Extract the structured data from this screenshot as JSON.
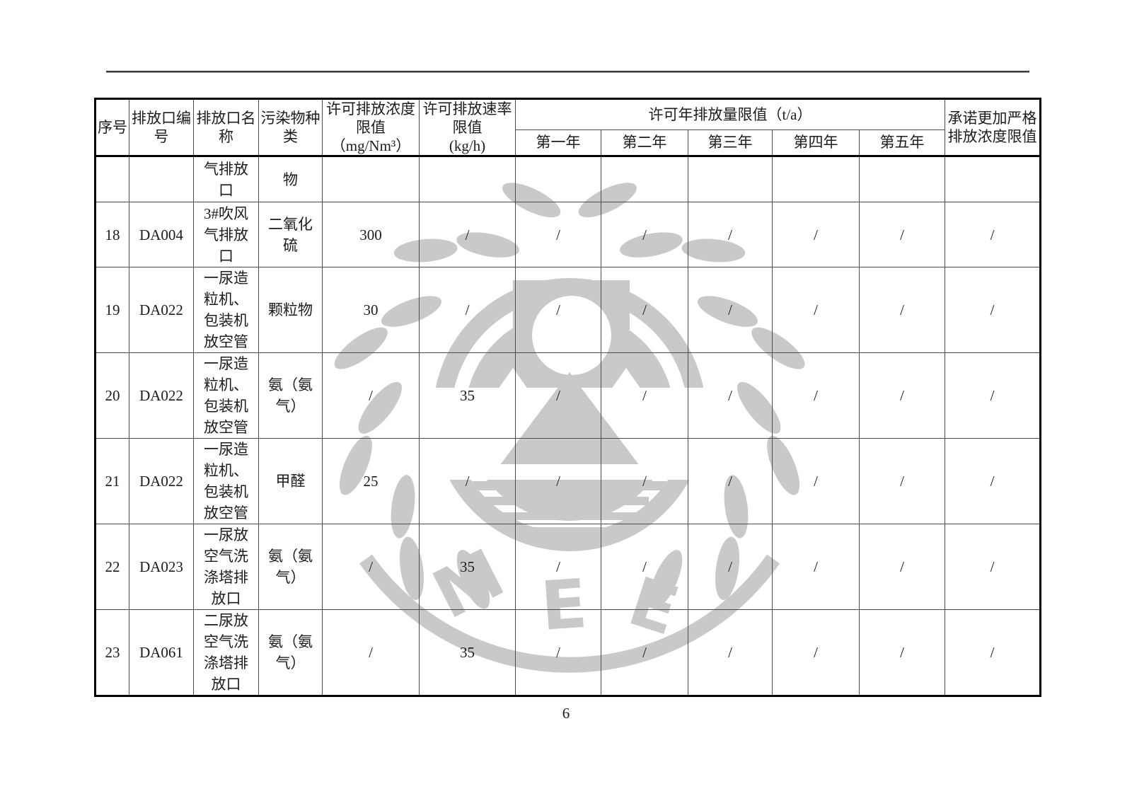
{
  "page": {
    "number": "6"
  },
  "watermark": {
    "letters": [
      "M",
      "E",
      "E"
    ],
    "color": "#c9c9c9"
  },
  "table": {
    "headers": {
      "col_seq": "序号",
      "col_outlet_no": "排放口编\n号",
      "col_outlet_name": "排放口名\n称",
      "col_pollutant": "污染物种\n类",
      "col_conc_limit": "许可排放浓度\n限值\n（mg/Nm³）",
      "col_rate_limit": "许可排放速率\n限值\n(kg/h)",
      "col_annual": "许可年排放量限值（t/a）",
      "years": [
        "第一年",
        "第二年",
        "第三年",
        "第四年",
        "第五年"
      ],
      "col_promise": "承诺更加严格\n排放浓度限值"
    },
    "rows": [
      {
        "seq": "",
        "outlet_no": "",
        "outlet_name": "气排放\n口",
        "pollutant": "物",
        "conc": "",
        "rate": "",
        "years": [
          "",
          "",
          "",
          "",
          ""
        ],
        "promise": ""
      },
      {
        "seq": "18",
        "outlet_no": "DA004",
        "outlet_name": "3#吹风\n气排放\n口",
        "pollutant": "二氧化\n硫",
        "conc": "300",
        "rate": "/",
        "years": [
          "/",
          "/",
          "/",
          "/",
          "/"
        ],
        "promise": "/"
      },
      {
        "seq": "19",
        "outlet_no": "DA022",
        "outlet_name": "一尿造\n粒机、\n包装机\n放空管",
        "pollutant": "颗粒物",
        "conc": "30",
        "rate": "/",
        "years": [
          "/",
          "/",
          "/",
          "/",
          "/"
        ],
        "promise": "/"
      },
      {
        "seq": "20",
        "outlet_no": "DA022",
        "outlet_name": "一尿造\n粒机、\n包装机\n放空管",
        "pollutant": "氨（氨\n气）",
        "conc": "/",
        "rate": "35",
        "years": [
          "/",
          "/",
          "/",
          "/",
          "/"
        ],
        "promise": "/"
      },
      {
        "seq": "21",
        "outlet_no": "DA022",
        "outlet_name": "一尿造\n粒机、\n包装机\n放空管",
        "pollutant": "甲醛",
        "conc": "25",
        "rate": "/",
        "years": [
          "/",
          "/",
          "/",
          "/",
          "/"
        ],
        "promise": "/"
      },
      {
        "seq": "22",
        "outlet_no": "DA023",
        "outlet_name": "一尿放\n空气洗\n涤塔排\n放口",
        "pollutant": "氨（氨\n气）",
        "conc": "/",
        "rate": "35",
        "years": [
          "/",
          "/",
          "/",
          "/",
          "/"
        ],
        "promise": "/"
      },
      {
        "seq": "23",
        "outlet_no": "DA061",
        "outlet_name": "二尿放\n空气洗\n涤塔排\n放口",
        "pollutant": "氨（氨\n气）",
        "conc": "/",
        "rate": "35",
        "years": [
          "/",
          "/",
          "/",
          "/",
          "/"
        ],
        "promise": "/"
      }
    ]
  }
}
